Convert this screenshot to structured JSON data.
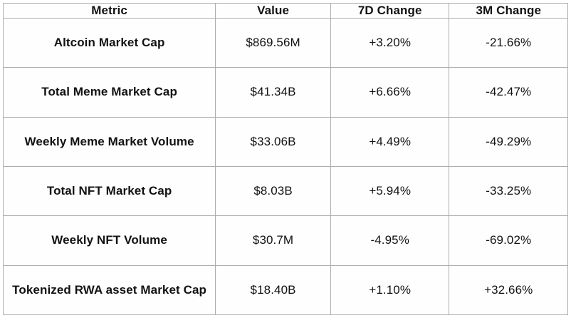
{
  "colors": {
    "background": "#ffffff",
    "table_background": "#fefefe",
    "border": "#adadad",
    "outer_border": "#9c9c9c",
    "text": "#121212"
  },
  "table": {
    "headers": [
      "Metric",
      "Value",
      "7D Change",
      "3M Change"
    ],
    "rows": [
      {
        "metric": "Altcoin Market Cap",
        "value": "$869.56M",
        "change_7d": "+3.20%",
        "change_3m": "-21.66%"
      },
      {
        "metric": "Total Meme Market Cap",
        "value": "$41.34B",
        "change_7d": "+6.66%",
        "change_3m": "-42.47%"
      },
      {
        "metric": "Weekly Meme Market Volume",
        "value": "$33.06B",
        "change_7d": "+4.49%",
        "change_3m": "-49.29%"
      },
      {
        "metric": "Total NFT Market Cap",
        "value": "$8.03B",
        "change_7d": "+5.94%",
        "change_3m": "-33.25%"
      },
      {
        "metric": "Weekly NFT Volume",
        "value": "$30.7M",
        "change_7d": "-4.95%",
        "change_3m": "-69.02%"
      },
      {
        "metric": "Tokenized RWA asset Market Cap",
        "value": "$18.40B",
        "change_7d": "+1.10%",
        "change_3m": "+32.66%"
      }
    ]
  },
  "chart_data": {
    "type": "table",
    "columns": [
      "Metric",
      "Value",
      "7D Change",
      "3M Change"
    ],
    "rows": [
      [
        "Altcoin Market Cap",
        "$869.56M",
        "+3.20%",
        "-21.66%"
      ],
      [
        "Total Meme Market Cap",
        "$41.34B",
        "+6.66%",
        "-42.47%"
      ],
      [
        "Weekly Meme Market Volume",
        "$33.06B",
        "+4.49%",
        "-49.29%"
      ],
      [
        "Total NFT Market Cap",
        "$8.03B",
        "+5.94%",
        "-33.25%"
      ],
      [
        "Weekly NFT Volume",
        "$30.7M",
        "-4.95%",
        "-69.02%"
      ],
      [
        "Tokenized RWA asset Market Cap",
        "$18.40B",
        "+1.10%",
        "+32.66%"
      ]
    ]
  }
}
